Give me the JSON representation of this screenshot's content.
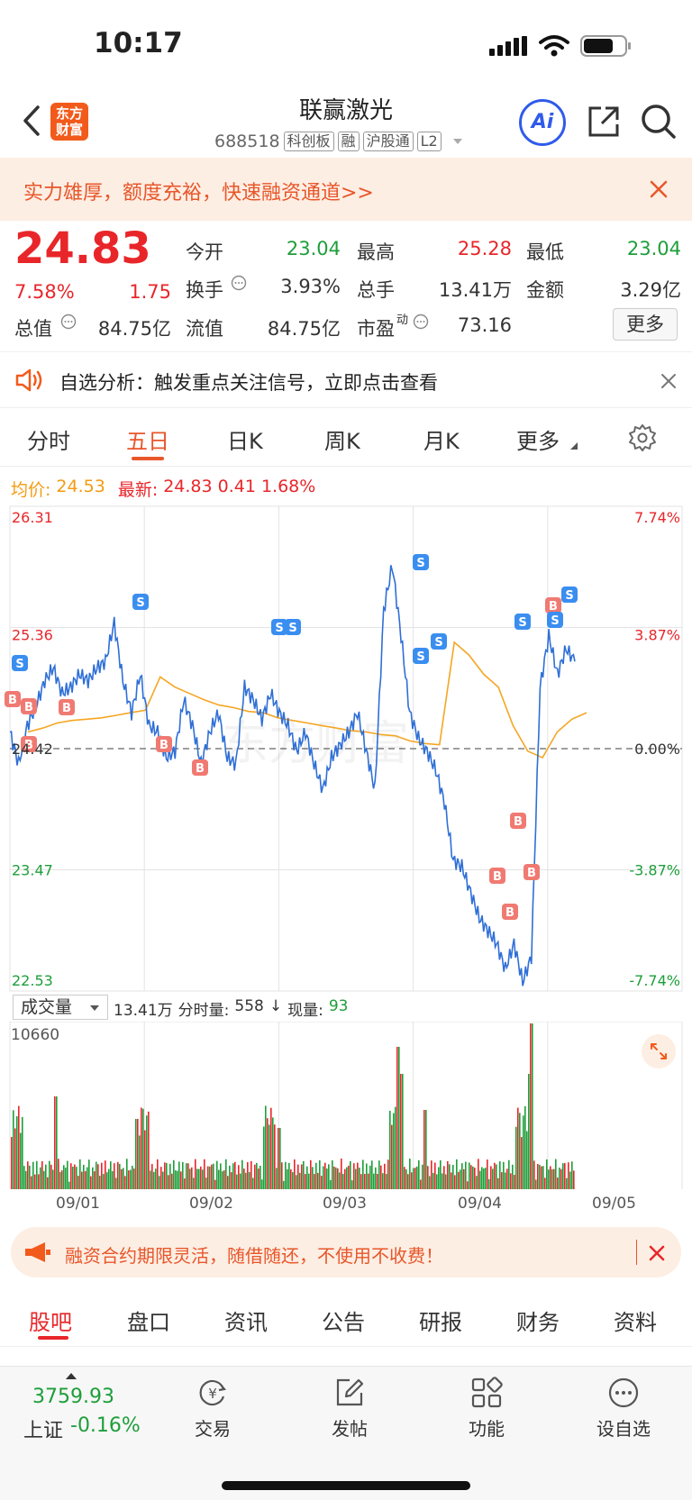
{
  "status_bar": {
    "time": "10:17"
  },
  "header": {
    "title": "联赢激光",
    "code": "688518",
    "tags": [
      "科创板",
      "融",
      "沪股通",
      "L2"
    ],
    "logo_text": "东方财富",
    "ai_label": "Ai"
  },
  "ad_banner": {
    "text": "实力雄厚，额度充裕，快速融资通道>>"
  },
  "quote": {
    "price": "24.83",
    "change_pct": "7.58%",
    "change": "1.75",
    "open_label": "今开",
    "open": "23.04",
    "high_label": "最高",
    "high": "25.28",
    "low_label": "最低",
    "low": "23.04",
    "turnover_label": "换手",
    "turnover": "3.93%",
    "volume_label": "总手",
    "volume": "13.41万",
    "amount_label": "金额",
    "amount": "3.29亿",
    "mktcap_label": "总值",
    "mktcap": "84.75亿",
    "float_label": "流值",
    "float": "84.75亿",
    "pe_label": "市盈",
    "pe_sup": "动",
    "pe": "73.16",
    "more_button": "更多"
  },
  "alert": {
    "text": "自选分析：触发重点关注信号，立即点击查看"
  },
  "tabs": [
    "分时",
    "五日",
    "日K",
    "周K",
    "月K",
    "更多"
  ],
  "chart_info": {
    "avg_label": "均价:",
    "avg": "24.53",
    "latest_label": "最新:",
    "latest": "24.83",
    "latest_change": "0.41",
    "latest_pct": "1.68%"
  },
  "volume_info": {
    "selector": "成交量",
    "total": "13.41万",
    "intraday_label": "分时量:",
    "intraday": "558",
    "arrow": "↓",
    "current_label": "现量:",
    "current": "93",
    "max_label": "10660"
  },
  "chart_data": {
    "type": "line",
    "y_ticks_left": [
      "26.31",
      "25.36",
      "24.42",
      "23.47",
      "22.53"
    ],
    "y_ticks_right": [
      "7.74%",
      "3.87%",
      "0.00%",
      "-3.87%",
      "-7.74%"
    ],
    "x_ticks": [
      "09/01",
      "09/02",
      "09/03",
      "09/04",
      "09/05"
    ],
    "ylim": [
      22.53,
      26.31
    ],
    "prev_close": 24.42,
    "series": [
      {
        "values": [
          24.55,
          24.3,
          24.6,
          24.75,
          24.95,
          25.05,
          24.85,
          24.9,
          25.0,
          24.95,
          25.05,
          25.1,
          25.4,
          24.95,
          24.7,
          25.0,
          24.6,
          24.55,
          24.35,
          24.4,
          24.8,
          24.6,
          24.3,
          24.55,
          24.7,
          24.35,
          24.3,
          24.9,
          24.8,
          24.65,
          24.85,
          24.7,
          24.6,
          24.4,
          24.55,
          24.3,
          24.1,
          24.35,
          24.45,
          24.55,
          24.7,
          24.4,
          24.1,
          25.5,
          25.85,
          25.3,
          24.7,
          24.5,
          24.4,
          24.25,
          24.0,
          23.55,
          23.5,
          23.3,
          23.1,
          23.0,
          22.9,
          22.7,
          22.9,
          22.6,
          22.8,
          24.9,
          25.3,
          25.0,
          25.2,
          25.1
        ]
      },
      {
        "values": [
          24.55,
          24.58,
          24.62,
          24.64,
          24.65,
          24.66,
          24.68,
          24.7,
          24.72,
          24.98,
          24.9,
          24.85,
          24.8,
          24.76,
          24.74,
          24.71,
          24.7,
          24.66,
          24.64,
          24.62,
          24.6,
          24.58,
          24.56,
          24.55,
          24.53,
          24.52,
          24.48,
          24.46,
          24.45,
          25.25,
          25.15,
          25.0,
          24.9,
          24.6,
          24.4,
          24.35,
          24.55,
          24.65,
          24.7
        ]
      }
    ],
    "markers": [
      "S",
      "B",
      "B",
      "B",
      "B",
      "S",
      "B",
      "B",
      "S",
      "S",
      "S",
      "S",
      "S",
      "B",
      "B",
      "B",
      "B",
      "B",
      "S",
      "S",
      "S"
    ]
  },
  "notice": {
    "text": "融资合约期限灵活，随借随还，不使用不收费！"
  },
  "news_tabs": [
    "股吧",
    "盘口",
    "资讯",
    "公告",
    "研报",
    "财务",
    "资料"
  ],
  "bottom_bar": {
    "index_value": "3759.93",
    "index_name": "上证",
    "index_change": "-0.16%",
    "items": [
      "交易",
      "发帖",
      "功能",
      "设自选"
    ]
  }
}
